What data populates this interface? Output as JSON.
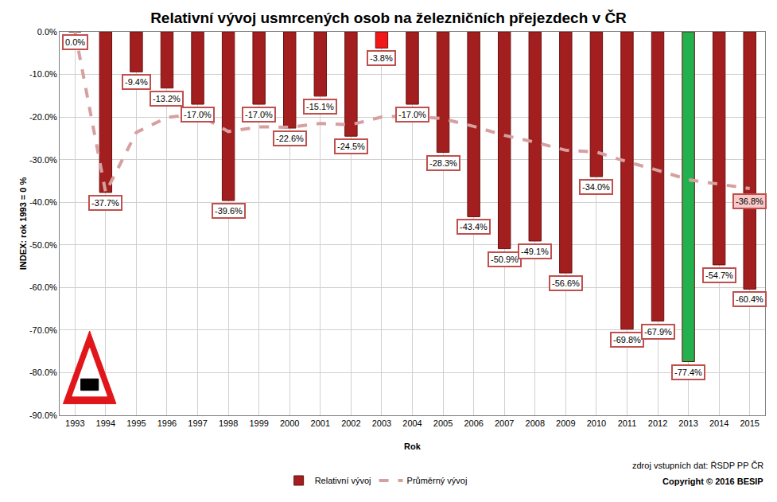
{
  "chart_data": {
    "type": "bar",
    "title": "Relativní vývoj usmrcených osob na železničních přejezdech v ČR",
    "x_label": "Rok",
    "y_label": "INDEX: rok 1993 = 0 %",
    "categories": [
      "1993",
      "1994",
      "1995",
      "1996",
      "1997",
      "1998",
      "1999",
      "2000",
      "2001",
      "2002",
      "2003",
      "2004",
      "2005",
      "2006",
      "2007",
      "2008",
      "2009",
      "2010",
      "2011",
      "2012",
      "2013",
      "2014",
      "2015"
    ],
    "series": [
      {
        "name": "Relativní vývoj",
        "type": "bar",
        "colors": [
          "#a31f1f",
          "#a31f1f",
          "#a31f1f",
          "#a31f1f",
          "#a31f1f",
          "#a31f1f",
          "#a31f1f",
          "#a31f1f",
          "#a31f1f",
          "#a31f1f",
          "#f01818",
          "#a31f1f",
          "#a31f1f",
          "#a31f1f",
          "#a31f1f",
          "#a31f1f",
          "#a31f1f",
          "#a31f1f",
          "#a31f1f",
          "#a31f1f",
          "#22b14c",
          "#a31f1f",
          "#a31f1f"
        ],
        "values": [
          0,
          -37.7,
          -9.4,
          -13.2,
          -17.0,
          -39.6,
          -17.0,
          -22.6,
          -15.1,
          -24.5,
          -3.8,
          -17.0,
          -28.3,
          -43.4,
          -50.9,
          -49.1,
          -56.6,
          -34.0,
          -69.8,
          -67.9,
          -77.4,
          -54.7,
          -60.4
        ],
        "value_labels": [
          "0.0%",
          "-37.7%",
          "-9.4%",
          "-13.2%",
          "-17.0%",
          "-39.6%",
          "-17.0%",
          "-22.6%",
          "-15.1%",
          "-24.5%",
          "-3.8%",
          "-17.0%",
          "-28.3%",
          "-43.4%",
          "-50.9%",
          "-49.1%",
          "-56.6%",
          "-34.0%",
          "-69.8%",
          "-67.9%",
          "-77.4%",
          "-54.7%",
          "-60.4%"
        ]
      },
      {
        "name": "Průměrný vývoj",
        "type": "line",
        "color": "#d6a0a0",
        "line_style": "dashed",
        "values": [
          0,
          -37.7,
          -23.6,
          -20.1,
          -19.3,
          -23.4,
          -22.3,
          -22.4,
          -21.5,
          -21.8,
          -20.0,
          -19.7,
          -20.4,
          -22.2,
          -24.3,
          -25.9,
          -27.8,
          -28.2,
          -30.5,
          -32.5,
          -34.7,
          -35.7,
          -36.8
        ],
        "value_labels": [
          null,
          null,
          null,
          null,
          null,
          null,
          null,
          null,
          null,
          null,
          null,
          null,
          null,
          null,
          null,
          null,
          null,
          null,
          null,
          null,
          null,
          null,
          "-36.8%"
        ]
      }
    ],
    "ylim": [
      -90,
      0
    ],
    "yticks": [
      {
        "value": 0,
        "label": "0.0%"
      },
      {
        "value": -10,
        "label": "-10.0%"
      },
      {
        "value": -20,
        "label": "-20.0%"
      },
      {
        "value": -30,
        "label": "-30.0%"
      },
      {
        "value": -40,
        "label": "-40.0%"
      },
      {
        "value": -50,
        "label": "-50.0%"
      },
      {
        "value": -60,
        "label": "-60.0%"
      },
      {
        "value": -70,
        "label": "-70.0%"
      },
      {
        "value": -80,
        "label": "-80.0%"
      },
      {
        "value": -90,
        "label": "-90.0%"
      }
    ],
    "grid": true,
    "legend": "bottom",
    "data_labels": true,
    "annotations": [
      "zdroj vstupních dat: ŘSDP PP ČR",
      "Copyright © 2016 BESIP"
    ]
  }
}
